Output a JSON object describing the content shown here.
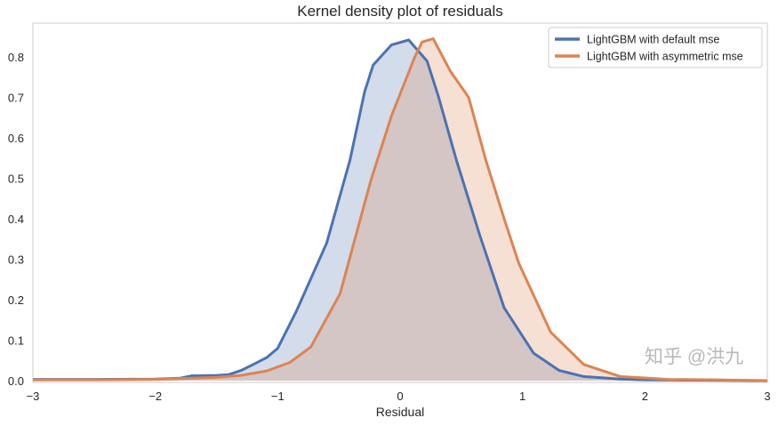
{
  "chart_data": {
    "type": "area",
    "title": "Kernel density plot of residuals",
    "xlabel": "Residual",
    "ylabel": "",
    "xlim": [
      -3,
      3
    ],
    "ylim": [
      0,
      0.88
    ],
    "grid": false,
    "legend_position": "top-right",
    "xticks": [
      -3,
      -2,
      -1,
      0,
      1,
      2,
      3
    ],
    "xtick_labels": [
      "−3",
      "−2",
      "−1",
      "0",
      "1",
      "2",
      "3"
    ],
    "yticks": [
      0,
      0.1,
      0.2,
      0.3,
      0.4,
      0.5,
      0.6,
      0.7,
      0.8
    ],
    "ytick_labels": [
      "0.0",
      "0.1",
      "0.2",
      "0.3",
      "0.4",
      "0.5",
      "0.6",
      "0.7",
      "0.8"
    ],
    "series": [
      {
        "name": "LightGBM with default mse",
        "color": "#4c72b0",
        "x": [
          -3,
          -2.5,
          -2,
          -1.8,
          -1.7,
          -1.5,
          -1.4,
          -1.3,
          -1.2,
          -1.09,
          -1.0,
          -0.85,
          -0.6,
          -0.41,
          -0.29,
          -0.22,
          -0.07,
          0.07,
          0.22,
          0.31,
          0.46,
          0.65,
          0.85,
          1.09,
          1.3,
          1.5,
          1.8,
          2.0,
          2.5,
          3
        ],
        "y": [
          0.003,
          0.003,
          0.004,
          0.006,
          0.012,
          0.013,
          0.015,
          0.025,
          0.04,
          0.057,
          0.08,
          0.17,
          0.34,
          0.545,
          0.714,
          0.78,
          0.83,
          0.842,
          0.79,
          0.705,
          0.545,
          0.36,
          0.18,
          0.068,
          0.025,
          0.01,
          0.004,
          0.002,
          0.001,
          0.0
        ]
      },
      {
        "name": "LightGBM with asymmetric mse",
        "color": "#dd8452",
        "x": [
          -3,
          -2.5,
          -2,
          -1.5,
          -1.3,
          -1.09,
          -0.9,
          -0.73,
          -0.49,
          -0.24,
          -0.07,
          0.12,
          0.18,
          0.27,
          0.41,
          0.56,
          0.7,
          0.85,
          0.97,
          1.23,
          1.5,
          1.8,
          2.2,
          2.6,
          3
        ],
        "y": [
          0.002,
          0.002,
          0.003,
          0.008,
          0.013,
          0.024,
          0.045,
          0.083,
          0.215,
          0.494,
          0.655,
          0.8,
          0.837,
          0.845,
          0.765,
          0.7,
          0.545,
          0.4,
          0.29,
          0.12,
          0.04,
          0.01,
          0.003,
          0.002,
          0.0
        ]
      }
    ]
  },
  "watermark": "知乎 @洪九"
}
